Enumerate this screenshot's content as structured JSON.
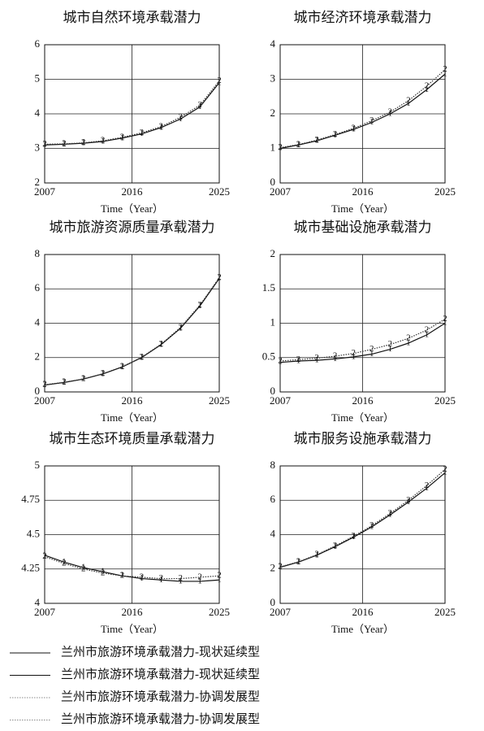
{
  "chart_data": [
    {
      "type": "line",
      "title": "城市自然环境承载潜力",
      "x_label": "Time（Year）",
      "x": [
        2007,
        2009,
        2011,
        2013,
        2015,
        2017,
        2019,
        2021,
        2023,
        2025
      ],
      "xlim": [
        2007,
        2025
      ],
      "xticks": [
        2007,
        2016,
        2025
      ],
      "ylim": [
        2,
        6
      ],
      "yticks": [
        2,
        3,
        4,
        5,
        6
      ],
      "grid": true,
      "series": [
        {
          "marker": "1",
          "style": "solid",
          "color": "#111111",
          "values": [
            3.1,
            3.12,
            3.15,
            3.2,
            3.3,
            3.42,
            3.6,
            3.85,
            4.2,
            4.9
          ]
        },
        {
          "marker": "2",
          "style": "dotted",
          "color": "#333333",
          "values": [
            3.12,
            3.13,
            3.16,
            3.22,
            3.32,
            3.45,
            3.63,
            3.9,
            4.25,
            4.95
          ]
        }
      ]
    },
    {
      "type": "line",
      "title": "城市经济环境承载潜力",
      "x_label": "Time（Year）",
      "x": [
        2007,
        2009,
        2011,
        2013,
        2015,
        2017,
        2019,
        2021,
        2023,
        2025
      ],
      "xlim": [
        2007,
        2025
      ],
      "xticks": [
        2007,
        2016,
        2025
      ],
      "ylim": [
        0,
        4
      ],
      "yticks": [
        0,
        1,
        2,
        3,
        4
      ],
      "grid": true,
      "series": [
        {
          "marker": "1",
          "style": "solid",
          "color": "#111111",
          "values": [
            1.0,
            1.1,
            1.22,
            1.38,
            1.55,
            1.75,
            2.0,
            2.3,
            2.7,
            3.15
          ]
        },
        {
          "marker": "2",
          "style": "dotted",
          "color": "#333333",
          "values": [
            1.02,
            1.11,
            1.24,
            1.4,
            1.58,
            1.8,
            2.05,
            2.38,
            2.8,
            3.28
          ]
        }
      ]
    },
    {
      "type": "line",
      "title": "城市旅游资源质量承载潜力",
      "x_label": "Time（Year）",
      "x": [
        2007,
        2009,
        2011,
        2013,
        2015,
        2017,
        2019,
        2021,
        2023,
        2025
      ],
      "xlim": [
        2007,
        2025
      ],
      "xticks": [
        2007,
        2016,
        2025
      ],
      "ylim": [
        0,
        8
      ],
      "yticks": [
        0,
        2,
        4,
        6,
        8
      ],
      "grid": true,
      "series": [
        {
          "marker": "1",
          "style": "solid",
          "color": "#111111",
          "values": [
            0.4,
            0.55,
            0.75,
            1.05,
            1.45,
            2.0,
            2.75,
            3.7,
            5.0,
            6.6
          ]
        },
        {
          "marker": "2",
          "style": "dotted",
          "color": "#333333",
          "values": [
            0.42,
            0.56,
            0.76,
            1.06,
            1.47,
            2.02,
            2.78,
            3.75,
            5.05,
            6.65
          ]
        }
      ]
    },
    {
      "type": "line",
      "title": "城市基础设施承载潜力",
      "x_label": "Time（Year）",
      "x": [
        2007,
        2009,
        2011,
        2013,
        2015,
        2017,
        2019,
        2021,
        2023,
        2025
      ],
      "xlim": [
        2007,
        2025
      ],
      "xticks": [
        2007,
        2016,
        2025
      ],
      "ylim": [
        0,
        2
      ],
      "yticks": [
        0,
        0.5,
        1,
        1.5,
        2
      ],
      "grid": true,
      "series": [
        {
          "marker": "1",
          "style": "solid",
          "color": "#111111",
          "values": [
            0.43,
            0.45,
            0.46,
            0.48,
            0.51,
            0.55,
            0.62,
            0.71,
            0.83,
            1.0
          ]
        },
        {
          "marker": "2",
          "style": "dotted",
          "color": "#333333",
          "values": [
            0.45,
            0.47,
            0.49,
            0.52,
            0.56,
            0.62,
            0.69,
            0.78,
            0.9,
            1.06
          ]
        }
      ]
    },
    {
      "type": "line",
      "title": "城市生态环境质量承载潜力",
      "x_label": "Time（Year）",
      "x": [
        2007,
        2009,
        2011,
        2013,
        2015,
        2017,
        2019,
        2021,
        2023,
        2025
      ],
      "xlim": [
        2007,
        2025
      ],
      "xticks": [
        2007,
        2016,
        2025
      ],
      "ylim": [
        4,
        5
      ],
      "yticks": [
        4,
        4.25,
        4.5,
        4.75,
        5
      ],
      "grid": true,
      "series": [
        {
          "marker": "1",
          "style": "solid",
          "color": "#111111",
          "values": [
            4.35,
            4.3,
            4.26,
            4.23,
            4.2,
            4.18,
            4.17,
            4.16,
            4.16,
            4.17
          ]
        },
        {
          "marker": "2",
          "style": "dotted",
          "color": "#333333",
          "values": [
            4.34,
            4.29,
            4.25,
            4.22,
            4.2,
            4.19,
            4.18,
            4.18,
            4.19,
            4.2
          ]
        }
      ]
    },
    {
      "type": "line",
      "title": "城市服务设施承载潜力",
      "x_label": "Time（Year）",
      "x": [
        2007,
        2009,
        2011,
        2013,
        2015,
        2017,
        2019,
        2021,
        2023,
        2025
      ],
      "xlim": [
        2007,
        2025
      ],
      "xticks": [
        2007,
        2016,
        2025
      ],
      "ylim": [
        0,
        8
      ],
      "yticks": [
        0,
        2,
        4,
        6,
        8
      ],
      "grid": true,
      "series": [
        {
          "marker": "1",
          "style": "solid",
          "color": "#111111",
          "values": [
            2.1,
            2.4,
            2.8,
            3.3,
            3.85,
            4.45,
            5.15,
            5.9,
            6.7,
            7.6
          ]
        },
        {
          "marker": "2",
          "style": "dotted",
          "color": "#333333",
          "values": [
            2.12,
            2.42,
            2.83,
            3.34,
            3.9,
            4.52,
            5.23,
            6.0,
            6.85,
            7.8
          ]
        }
      ]
    }
  ],
  "legend": [
    {
      "label": "兰州市旅游环境承载潜力-现状延续型",
      "style": "solid",
      "color": "#111111"
    },
    {
      "label": "兰州市旅游环境承载潜力-现状延续型",
      "style": "solid",
      "color": "#111111"
    },
    {
      "label": "兰州市旅游环境承载潜力-协调发展型",
      "style": "dotted",
      "color": "#888888"
    },
    {
      "label": "兰州市旅游环境承载潜力-协调发展型",
      "style": "dotted",
      "color": "#888888"
    }
  ]
}
